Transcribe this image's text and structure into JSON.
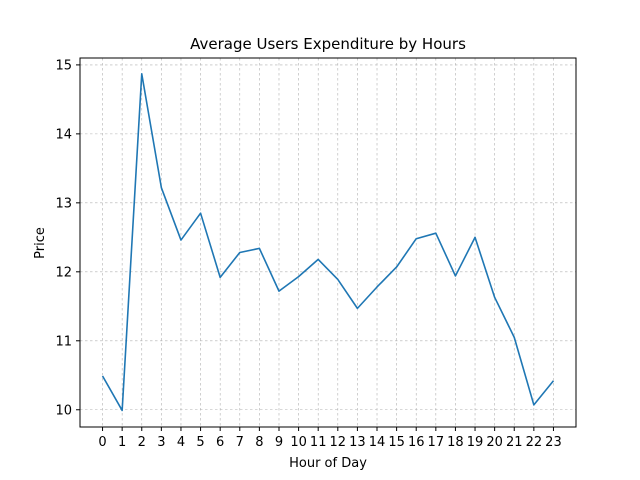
{
  "chart_data": {
    "type": "line",
    "title": "Average Users Expenditure by Hours",
    "xlabel": "Hour of Day",
    "ylabel": "Price",
    "x": [
      0,
      1,
      2,
      3,
      4,
      5,
      6,
      7,
      8,
      9,
      10,
      11,
      12,
      13,
      14,
      15,
      16,
      17,
      18,
      19,
      20,
      21,
      22,
      23
    ],
    "x_tick_labels": [
      "0",
      "1",
      "2",
      "3",
      "4",
      "5",
      "6",
      "7",
      "8",
      "9",
      "10",
      "11",
      "12",
      "13",
      "14",
      "15",
      "16",
      "17",
      "18",
      "19",
      "20",
      "21",
      "22",
      "23"
    ],
    "y_ticks": [
      10,
      11,
      12,
      13,
      14,
      15
    ],
    "y_tick_labels": [
      "10",
      "11",
      "12",
      "13",
      "14",
      "15"
    ],
    "xlim": [
      -1.15,
      24.15
    ],
    "ylim": [
      9.75,
      15.1
    ],
    "grid": true,
    "series": [
      {
        "color": "#1f77b4",
        "values": [
          10.49,
          9.99,
          14.87,
          13.22,
          12.46,
          12.85,
          11.92,
          12.28,
          12.34,
          11.72,
          11.93,
          12.18,
          11.89,
          11.47,
          11.78,
          12.07,
          12.48,
          12.56,
          11.94,
          12.5,
          11.63,
          11.05,
          10.07,
          10.42
        ]
      }
    ]
  }
}
